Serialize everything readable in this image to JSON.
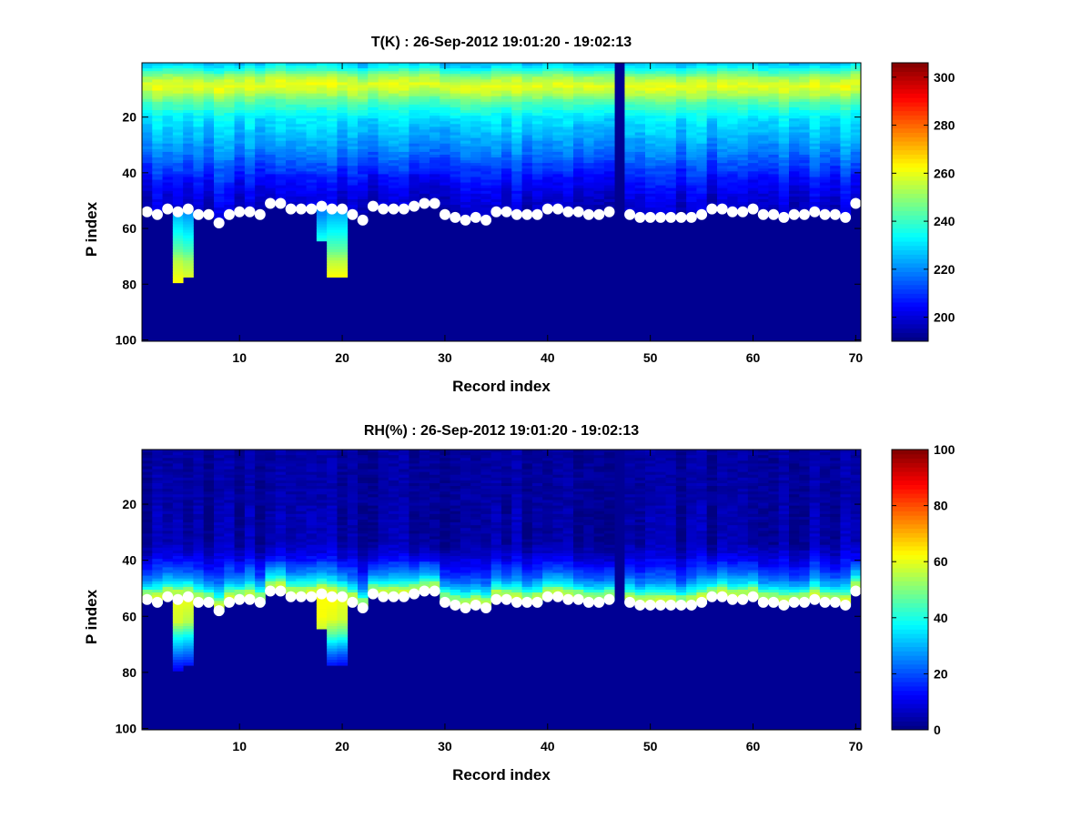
{
  "chart_data": [
    {
      "type": "heatmap",
      "title": "T(K) : 26-Sep-2012 19:01:20 - 19:02:13",
      "xlabel": "Record index",
      "ylabel": "P index",
      "xlim": [
        0.5,
        70.5
      ],
      "ylim": [
        100.5,
        0.5
      ],
      "x_ticks": [
        "10",
        "20",
        "30",
        "40",
        "50",
        "60",
        "70"
      ],
      "y_ticks": [
        "20",
        "40",
        "60",
        "80",
        "100"
      ],
      "colorbar": {
        "min": 190,
        "max": 306,
        "ticks": [
          "200",
          "220",
          "240",
          "260",
          "280",
          "300"
        ],
        "colormap": "jet"
      },
      "fill_value": 192,
      "missing_record": 47,
      "profile": {
        "p": [
          1,
          3,
          6,
          9,
          12,
          15,
          20,
          26,
          32,
          38,
          44,
          50,
          56
        ],
        "value": [
          226,
          236,
          252,
          260,
          253,
          243,
          232,
          226,
          220,
          212,
          205,
          200,
          197
        ]
      },
      "bottom_extensions": [
        {
          "record": 4,
          "end": 79,
          "profile": {
            "p": [
              55,
              62,
              68,
              72,
              79
            ],
            "value": [
              225,
              235,
              245,
              255,
              262
            ]
          }
        },
        {
          "record": 5,
          "end": 77,
          "profile": {
            "p": [
              55,
              62,
              68,
              72,
              77
            ],
            "value": [
              222,
              232,
              242,
              252,
              258
            ]
          }
        },
        {
          "record": 18,
          "end": 64,
          "profile": {
            "p": [
              55,
              60,
              64
            ],
            "value": [
              220,
              228,
              236
            ]
          }
        },
        {
          "record": 19,
          "end": 77,
          "profile": {
            "p": [
              55,
              62,
              68,
              72,
              77
            ],
            "value": [
              225,
              235,
              245,
              255,
              262
            ]
          }
        },
        {
          "record": 20,
          "end": 77,
          "profile": {
            "p": [
              55,
              62,
              68,
              72,
              77
            ],
            "value": [
              225,
              235,
              245,
              255,
              262
            ]
          }
        }
      ],
      "markers": {
        "x": [
          1,
          2,
          3,
          4,
          5,
          6,
          7,
          8,
          9,
          10,
          11,
          12,
          13,
          14,
          15,
          16,
          17,
          18,
          19,
          20,
          21,
          22,
          23,
          24,
          25,
          26,
          27,
          28,
          29,
          30,
          31,
          32,
          33,
          34,
          35,
          36,
          37,
          38,
          39,
          40,
          41,
          42,
          43,
          44,
          45,
          46,
          48,
          49,
          50,
          51,
          52,
          53,
          54,
          55,
          56,
          57,
          58,
          59,
          60,
          61,
          62,
          63,
          64,
          65,
          66,
          67,
          68,
          69,
          70
        ],
        "y": [
          54,
          55,
          53,
          54,
          53,
          55,
          55,
          58,
          55,
          54,
          54,
          55,
          51,
          51,
          53,
          53,
          53,
          52,
          53,
          53,
          55,
          57,
          52,
          53,
          53,
          53,
          52,
          51,
          51,
          55,
          56,
          57,
          56,
          57,
          54,
          54,
          55,
          55,
          55,
          53,
          53,
          54,
          54,
          55,
          55,
          54,
          55,
          56,
          56,
          56,
          56,
          56,
          56,
          55,
          53,
          53,
          54,
          54,
          53,
          55,
          55,
          56,
          55,
          55,
          54,
          55,
          55,
          56,
          51
        ],
        "color": "#ffffff"
      }
    },
    {
      "type": "heatmap",
      "title": "RH(%) : 26-Sep-2012 19:01:20 - 19:02:13",
      "xlabel": "Record index",
      "ylabel": "P index",
      "xlim": [
        0.5,
        70.5
      ],
      "ylim": [
        100.5,
        0.5
      ],
      "x_ticks": [
        "10",
        "20",
        "30",
        "40",
        "50",
        "60",
        "70"
      ],
      "y_ticks": [
        "20",
        "40",
        "60",
        "80",
        "100"
      ],
      "colorbar": {
        "min": 0,
        "max": 100,
        "ticks": [
          "0",
          "20",
          "40",
          "60",
          "80",
          "100"
        ],
        "colormap": "jet"
      },
      "fill_value": 2,
      "missing_record": 47,
      "profile": {
        "p": [
          1,
          34,
          38,
          42,
          46,
          49,
          51,
          52,
          54,
          55,
          58
        ],
        "value": [
          3,
          4,
          8,
          14,
          22,
          32,
          42,
          52,
          56,
          40,
          4
        ]
      },
      "bottom_extensions": [
        {
          "record": 4,
          "end": 79,
          "profile": {
            "p": [
              55,
              62,
              67,
              72,
              76,
              79
            ],
            "value": [
              60,
              58,
              40,
              28,
              18,
              12
            ]
          }
        },
        {
          "record": 5,
          "end": 77,
          "profile": {
            "p": [
              55,
              62,
              67,
              72,
              77
            ],
            "value": [
              60,
              55,
              38,
              26,
              15
            ]
          }
        },
        {
          "record": 18,
          "end": 64,
          "profile": {
            "p": [
              55,
              60,
              64
            ],
            "value": [
              62,
              62,
              58
            ]
          }
        },
        {
          "record": 19,
          "end": 77,
          "profile": {
            "p": [
              55,
              61,
              66,
              70,
              74,
              77
            ],
            "value": [
              62,
              60,
              48,
              34,
              22,
              15
            ]
          }
        },
        {
          "record": 20,
          "end": 77,
          "profile": {
            "p": [
              55,
              61,
              66,
              70,
              74,
              77
            ],
            "value": [
              60,
              58,
              46,
              32,
              20,
              14
            ]
          }
        }
      ],
      "markers": {
        "x": [
          1,
          2,
          3,
          4,
          5,
          6,
          7,
          8,
          9,
          10,
          11,
          12,
          13,
          14,
          15,
          16,
          17,
          18,
          19,
          20,
          21,
          22,
          23,
          24,
          25,
          26,
          27,
          28,
          29,
          30,
          31,
          32,
          33,
          34,
          35,
          36,
          37,
          38,
          39,
          40,
          41,
          42,
          43,
          44,
          45,
          46,
          48,
          49,
          50,
          51,
          52,
          53,
          54,
          55,
          56,
          57,
          58,
          59,
          60,
          61,
          62,
          63,
          64,
          65,
          66,
          67,
          68,
          69,
          70
        ],
        "y": [
          54,
          55,
          53,
          54,
          53,
          55,
          55,
          58,
          55,
          54,
          54,
          55,
          51,
          51,
          53,
          53,
          53,
          52,
          53,
          53,
          55,
          57,
          52,
          53,
          53,
          53,
          52,
          51,
          51,
          55,
          56,
          57,
          56,
          57,
          54,
          54,
          55,
          55,
          55,
          53,
          53,
          54,
          54,
          55,
          55,
          54,
          55,
          56,
          56,
          56,
          56,
          56,
          56,
          55,
          53,
          53,
          54,
          54,
          53,
          55,
          55,
          56,
          55,
          55,
          54,
          55,
          55,
          56,
          51
        ],
        "color": "#ffffff"
      }
    }
  ]
}
